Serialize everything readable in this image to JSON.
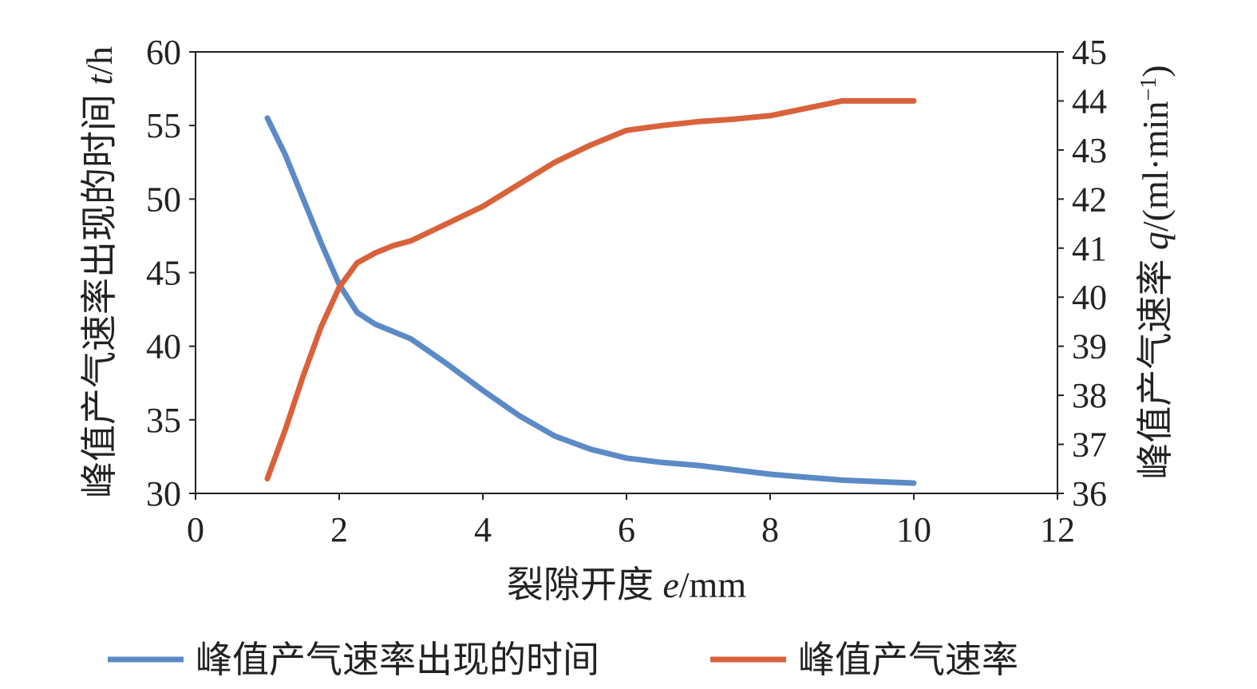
{
  "chart_data": {
    "type": "line",
    "x_axis": {
      "label_prefix": "裂隙开度 ",
      "label_var": "e",
      "label_unit": "/mm",
      "range": [
        0,
        12
      ],
      "ticks": [
        0,
        2,
        4,
        6,
        8,
        10,
        12
      ]
    },
    "y_axis_left": {
      "label_prefix": "峰值产气速率出现的时间 ",
      "label_var": "t",
      "label_unit": "/h",
      "range": [
        30,
        60
      ],
      "ticks": [
        30,
        35,
        40,
        45,
        50,
        55,
        60
      ]
    },
    "y_axis_right": {
      "label_prefix": "峰值产气速率 ",
      "label_var": "q",
      "label_unit": "/(ml·min",
      "label_sup": "−1",
      "label_close": ")",
      "range": [
        36,
        45
      ],
      "ticks": [
        36,
        37,
        38,
        39,
        40,
        41,
        42,
        43,
        44,
        45
      ]
    },
    "grid": false,
    "legend_position": "bottom",
    "series": [
      {
        "name": "峰值产气速率出现的时间",
        "axis": "left",
        "color": "#5b8ac6",
        "x": [
          1.0,
          1.25,
          1.5,
          1.75,
          2.0,
          2.25,
          2.5,
          2.75,
          3.0,
          3.5,
          4.0,
          4.5,
          5.0,
          5.5,
          6.0,
          6.5,
          7.0,
          7.5,
          8.0,
          8.5,
          9.0,
          9.5,
          10.0
        ],
        "y": [
          55.5,
          53.0,
          50.0,
          47.0,
          44.2,
          42.3,
          41.5,
          41.0,
          40.5,
          38.8,
          37.0,
          35.3,
          33.9,
          33.0,
          32.4,
          32.1,
          31.9,
          31.6,
          31.3,
          31.1,
          30.9,
          30.8,
          30.7
        ]
      },
      {
        "name": "峰值产气速率",
        "axis": "right",
        "color": "#d9623b",
        "x": [
          1.0,
          1.25,
          1.5,
          1.75,
          2.0,
          2.25,
          2.5,
          2.75,
          3.0,
          3.5,
          4.0,
          4.5,
          5.0,
          5.5,
          6.0,
          6.5,
          7.0,
          7.5,
          8.0,
          8.5,
          9.0,
          9.5,
          10.0
        ],
        "y": [
          36.3,
          37.3,
          38.4,
          39.4,
          40.2,
          40.7,
          40.9,
          41.05,
          41.15,
          41.5,
          41.85,
          42.3,
          42.75,
          43.1,
          43.4,
          43.5,
          43.58,
          43.63,
          43.7,
          43.85,
          44.0,
          44.0,
          44.0
        ]
      }
    ]
  }
}
